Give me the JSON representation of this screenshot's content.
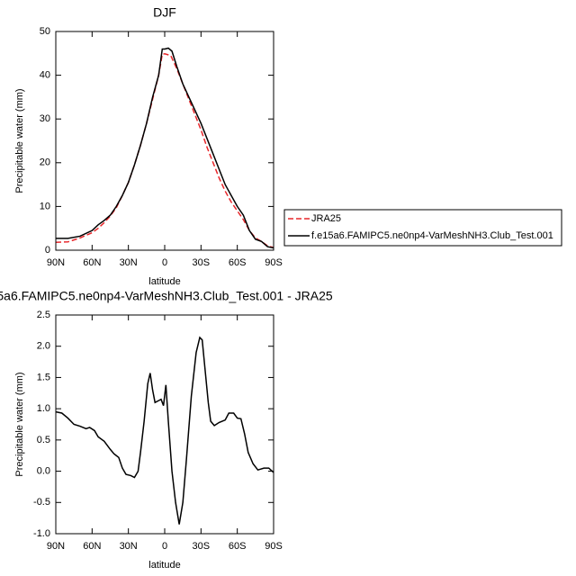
{
  "chart_data": [
    {
      "type": "line",
      "title": "DJF",
      "xlabel": "latitude",
      "ylabel": "Precipitable water (mm)",
      "xlim": [
        90,
        -90
      ],
      "xticks": [
        {
          "value": 90,
          "label": "90N"
        },
        {
          "value": 60,
          "label": "60N"
        },
        {
          "value": 30,
          "label": "30N"
        },
        0,
        {
          "value": -30,
          "label": "30S"
        },
        {
          "value": -60,
          "label": "60S"
        },
        {
          "value": -90,
          "label": "90S"
        }
      ],
      "ylim": [
        0,
        50
      ],
      "yticks": [
        0,
        10,
        20,
        30,
        40,
        50
      ],
      "legend": "right",
      "series": [
        {
          "name": "JRA25",
          "color": "#e8262a",
          "dash": true,
          "x": [
            90,
            80,
            70,
            60,
            55,
            50,
            45,
            40,
            35,
            30,
            25,
            20,
            15,
            10,
            5,
            2,
            0,
            -5,
            -10,
            -15,
            -20,
            -25,
            -30,
            -35,
            -40,
            -45,
            -50,
            -55,
            -60,
            -65,
            -70,
            -75,
            -80,
            -85,
            -90
          ],
          "values": [
            1.8,
            1.9,
            2.8,
            4,
            5,
            6.3,
            7.8,
            9.7,
            12.5,
            15.5,
            19.5,
            24,
            29,
            34.5,
            40,
            44.8,
            44.9,
            44.5,
            41.5,
            38,
            34.5,
            31,
            27.5,
            23.5,
            20,
            16.5,
            13.5,
            11,
            9,
            7,
            4.5,
            2.8,
            2,
            1,
            0.6
          ]
        },
        {
          "name": "f.e15a6.FAMIPC5.ne0np4-VarMeshNH3.Club_Test.001",
          "color": "#000000",
          "dash": false,
          "x": [
            90,
            80,
            70,
            60,
            55,
            50,
            45,
            40,
            35,
            30,
            25,
            20,
            15,
            10,
            5,
            2,
            0,
            -3,
            -6,
            -10,
            -15,
            -20,
            -25,
            -30,
            -35,
            -40,
            -45,
            -50,
            -55,
            -60,
            -65,
            -70,
            -75,
            -80,
            -85,
            -90
          ],
          "values": [
            2.7,
            2.7,
            3.2,
            4.5,
            5.8,
            6.8,
            8,
            10,
            12.5,
            15.5,
            19.5,
            24,
            29,
            35,
            40,
            46,
            46,
            46.2,
            45.5,
            42,
            38,
            35,
            32,
            29,
            25.5,
            22,
            18.5,
            15,
            12.5,
            10,
            8,
            4.5,
            2.5,
            2,
            0.8,
            0.5
          ]
        }
      ]
    },
    {
      "type": "line",
      "title": "5a6.FAMIPC5.ne0np4-VarMeshNH3.Club_Test.001 - JRA25",
      "xlabel": "latitude",
      "ylabel": "Precipitable water (mm)",
      "xlim": [
        90,
        -90
      ],
      "xticks": [
        {
          "value": 90,
          "label": "90N"
        },
        {
          "value": 60,
          "label": "60N"
        },
        {
          "value": 30,
          "label": "30N"
        },
        0,
        {
          "value": -30,
          "label": "30S"
        },
        {
          "value": -60,
          "label": "60S"
        },
        {
          "value": -90,
          "label": "90S"
        }
      ],
      "ylim": [
        -1,
        2.5
      ],
      "yticks": [
        {
          "value": -1,
          "label": "-1.0"
        },
        -0.5,
        {
          "value": 0,
          "label": "0.0"
        },
        0.5,
        {
          "value": 1,
          "label": "1.0"
        },
        1.5,
        {
          "value": 2,
          "label": "2.0"
        },
        2.5
      ],
      "series": [
        {
          "color": "#000000",
          "dash": false,
          "x": [
            90,
            85,
            80,
            75,
            70,
            65,
            62,
            58,
            55,
            50,
            45,
            42,
            38,
            35,
            32,
            28,
            25,
            22,
            20,
            17,
            14,
            12,
            10,
            8,
            5,
            3,
            1,
            -1,
            -3,
            -6,
            -9,
            -12,
            -15,
            -18,
            -22,
            -26,
            -29,
            -31,
            -33,
            -36,
            -38,
            -41,
            -45,
            -50,
            -53,
            -57,
            -60,
            -63,
            -66,
            -69,
            -73,
            -77,
            -82,
            -86,
            -90
          ],
          "values": [
            0.95,
            0.93,
            0.85,
            0.75,
            0.72,
            0.68,
            0.7,
            0.65,
            0.55,
            0.48,
            0.35,
            0.28,
            0.22,
            0.05,
            -0.05,
            -0.07,
            -0.1,
            0.0,
            0.3,
            0.8,
            1.4,
            1.57,
            1.3,
            1.1,
            1.13,
            1.15,
            1.05,
            1.38,
            0.8,
            0.0,
            -0.5,
            -0.85,
            -0.5,
            0.2,
            1.2,
            1.9,
            2.14,
            2.1,
            1.7,
            1.1,
            0.8,
            0.73,
            0.78,
            0.82,
            0.93,
            0.93,
            0.85,
            0.84,
            0.6,
            0.3,
            0.12,
            0.02,
            0.05,
            0.05,
            -0.02
          ]
        }
      ]
    }
  ]
}
